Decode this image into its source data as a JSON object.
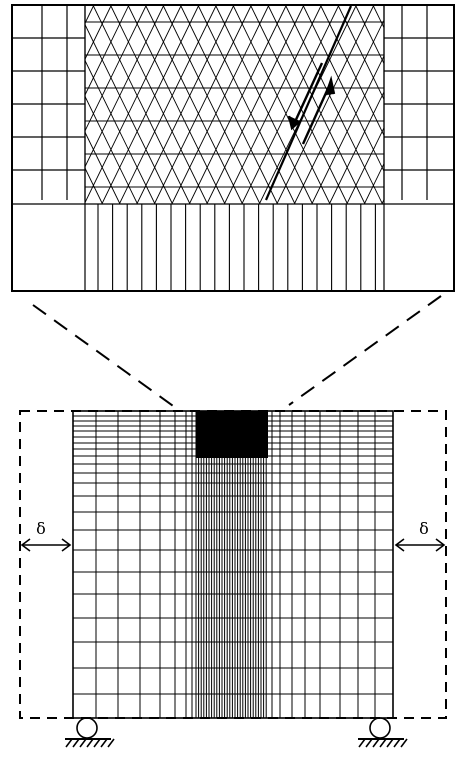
{
  "figure": {
    "displacement_label_left": "δ",
    "displacement_label_right": "δ"
  },
  "colors": {
    "ink": "#000000",
    "background": "#ffffff"
  },
  "icons": [
    "roller-support-icon",
    "double-arrow-icon",
    "shear-arrow-icon"
  ]
}
